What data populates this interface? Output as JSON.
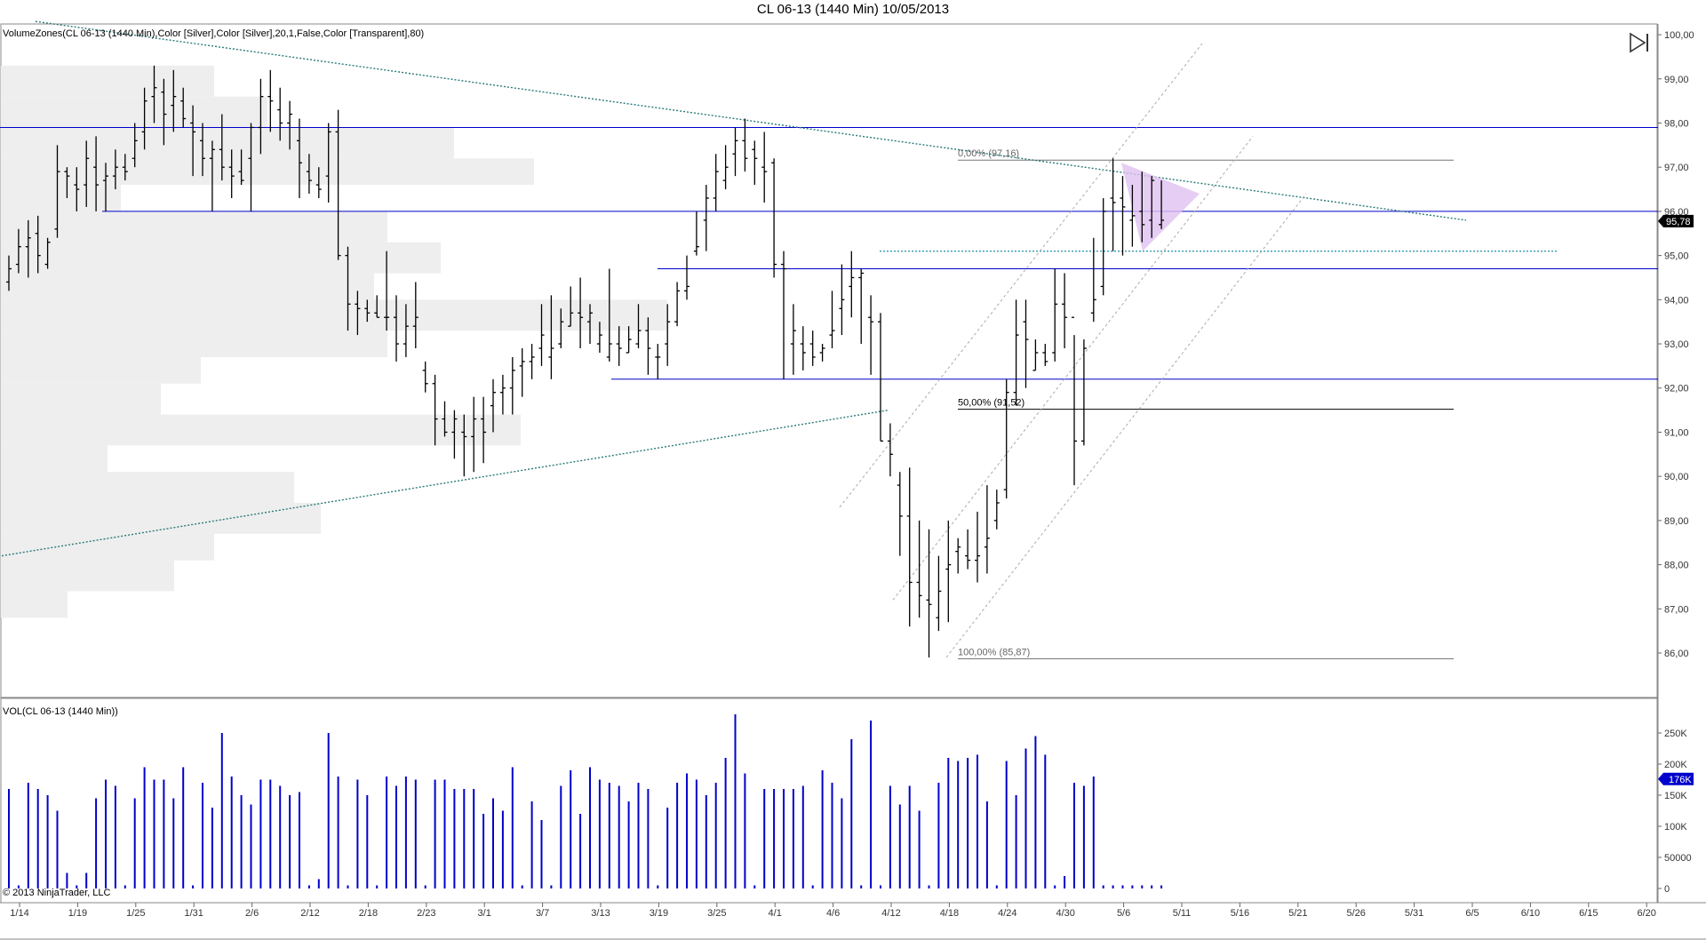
{
  "title": "CL 06-13 (1440 Min)  10/05/2013",
  "price_panel_label": "VolumeZones(CL 06-13 (1440 Min),Color [Silver],Color [Silver],20,1,False,Color [Transparent],80)",
  "volume_panel_label": "VOL(CL 06-13 (1440 Min))",
  "copyright": "© 2013 NinjaTrader, LLC",
  "colors": {
    "bars": "#000000",
    "volume": "#0000cc",
    "level_lines": "#0000cc",
    "trendline": "#2a7a7a",
    "zones": "#eeeeee",
    "triangle": "#e0c0f0",
    "price_marker": "#000000",
    "volume_marker": "#0000cc"
  },
  "icons": {
    "play_end": "play-to-end-icon"
  },
  "chart_data": [
    {
      "type": "ohlc",
      "panel": "price",
      "ylim": [
        85,
        100
      ],
      "y_ticks": [
        "86,00",
        "87,00",
        "88,00",
        "89,00",
        "90,00",
        "91,00",
        "92,00",
        "93,00",
        "94,00",
        "95,00",
        "96,00",
        "97,00",
        "98,00",
        "99,00",
        "100,00"
      ],
      "x_ticks": [
        "1/14",
        "1/19",
        "1/25",
        "1/31",
        "2/6",
        "2/12",
        "2/18",
        "2/23",
        "3/1",
        "3/7",
        "3/13",
        "3/19",
        "3/25",
        "4/1",
        "4/6",
        "4/12",
        "4/18",
        "4/24",
        "4/30",
        "5/6",
        "5/11",
        "5/16",
        "5/21",
        "5/26",
        "5/31",
        "6/5",
        "6/10",
        "6/15",
        "6/20"
      ],
      "current_price": "95,78",
      "bars": [
        [
          94.4,
          95.0,
          94.2,
          94.7
        ],
        [
          94.8,
          95.6,
          94.6,
          95.2
        ],
        [
          95.2,
          95.8,
          94.5,
          95.4
        ],
        [
          95.5,
          95.9,
          94.6,
          95.0
        ],
        [
          94.8,
          95.4,
          94.7,
          95.3
        ],
        [
          95.6,
          97.5,
          95.4,
          96.9
        ],
        [
          96.9,
          97.0,
          96.3,
          96.8
        ],
        [
          96.6,
          97.0,
          96.0,
          96.5
        ],
        [
          96.6,
          97.6,
          96.1,
          97.2
        ],
        [
          97.0,
          97.7,
          96.0,
          96.6
        ],
        [
          96.7,
          97.1,
          96.0,
          96.8
        ],
        [
          96.8,
          97.4,
          96.5,
          97.0
        ],
        [
          97.0,
          97.3,
          96.7,
          96.9
        ],
        [
          97.2,
          98.0,
          97.0,
          97.6
        ],
        [
          97.8,
          98.8,
          97.4,
          98.5
        ],
        [
          98.6,
          99.3,
          98.0,
          98.8
        ],
        [
          98.7,
          99.0,
          97.5,
          98.2
        ],
        [
          98.4,
          99.2,
          97.8,
          98.6
        ],
        [
          98.5,
          98.8,
          97.9,
          98.1
        ],
        [
          98.0,
          98.4,
          96.8,
          97.8
        ],
        [
          97.6,
          98.0,
          96.8,
          97.2
        ],
        [
          97.2,
          97.6,
          96.0,
          97.4
        ],
        [
          97.4,
          98.2,
          96.7,
          97.0
        ],
        [
          97.0,
          97.4,
          96.3,
          96.8
        ],
        [
          96.9,
          97.4,
          96.6,
          96.7
        ],
        [
          97.2,
          98.0,
          96.0,
          97.9
        ],
        [
          97.9,
          99.0,
          97.3,
          98.6
        ],
        [
          98.6,
          99.2,
          97.8,
          98.5
        ],
        [
          98.3,
          98.8,
          97.6,
          98.0
        ],
        [
          98.0,
          98.5,
          97.4,
          98.2
        ],
        [
          97.6,
          98.1,
          96.3,
          97.1
        ],
        [
          96.9,
          97.3,
          96.4,
          96.7
        ],
        [
          96.6,
          97.0,
          96.3,
          96.5
        ],
        [
          96.8,
          98.0,
          96.2,
          97.8
        ],
        [
          97.8,
          98.3,
          94.9,
          95.0
        ],
        [
          95.0,
          95.2,
          93.3,
          93.9
        ],
        [
          93.9,
          94.2,
          93.2,
          93.8
        ],
        [
          93.8,
          94.0,
          93.5,
          93.7
        ],
        [
          93.7,
          94.1,
          93.6,
          93.6
        ],
        [
          93.6,
          95.1,
          93.3,
          93.6
        ],
        [
          93.6,
          94.1,
          92.6,
          93.0
        ],
        [
          93.0,
          93.9,
          92.7,
          93.4
        ],
        [
          93.4,
          94.4,
          92.9,
          93.6
        ],
        [
          92.4,
          92.6,
          91.9,
          92.1
        ],
        [
          92.1,
          92.3,
          90.7,
          91.3
        ],
        [
          91.3,
          91.7,
          90.9,
          91.0
        ],
        [
          91.0,
          91.5,
          90.4,
          91.3
        ],
        [
          91.0,
          91.4,
          90.0,
          90.9
        ],
        [
          90.9,
          91.8,
          90.1,
          91.3
        ],
        [
          91.3,
          91.8,
          90.3,
          91.0
        ],
        [
          91.6,
          92.2,
          91.0,
          91.9
        ],
        [
          91.9,
          92.3,
          91.4,
          92.0
        ],
        [
          92.0,
          92.7,
          91.4,
          92.4
        ],
        [
          92.5,
          92.9,
          91.8,
          92.6
        ],
        [
          92.6,
          93.0,
          92.2,
          92.7
        ],
        [
          92.9,
          93.9,
          92.5,
          93.2
        ],
        [
          92.7,
          94.1,
          92.2,
          92.9
        ],
        [
          93.0,
          93.8,
          92.9,
          93.5
        ],
        [
          93.4,
          94.3,
          93.4,
          93.7
        ],
        [
          93.7,
          94.5,
          92.9,
          93.6
        ],
        [
          93.5,
          93.9,
          93.0,
          93.7
        ],
        [
          93.0,
          93.5,
          92.8,
          93.2
        ],
        [
          92.7,
          94.7,
          92.6,
          93.0
        ],
        [
          93.0,
          93.4,
          92.5,
          92.9
        ],
        [
          92.8,
          93.4,
          92.8,
          93.1
        ],
        [
          93.0,
          93.9,
          92.9,
          93.3
        ],
        [
          93.3,
          93.6,
          92.3,
          92.9
        ],
        [
          92.7,
          93.0,
          92.2,
          92.7
        ],
        [
          93.0,
          93.9,
          92.5,
          93.5
        ],
        [
          93.5,
          94.4,
          93.4,
          94.2
        ],
        [
          94.2,
          95.0,
          94.0,
          94.3
        ],
        [
          95.1,
          96.0,
          95.0,
          95.2
        ],
        [
          95.8,
          96.6,
          95.1,
          96.3
        ],
        [
          96.3,
          97.3,
          96.0,
          96.9
        ],
        [
          96.7,
          97.5,
          96.5,
          97.0
        ],
        [
          97.3,
          97.9,
          96.8,
          97.6
        ],
        [
          97.6,
          98.1,
          96.9,
          97.2
        ],
        [
          97.4,
          97.6,
          96.6,
          97.2
        ],
        [
          97.0,
          97.8,
          96.2,
          96.9
        ],
        [
          97.1,
          97.2,
          94.5,
          94.8
        ],
        [
          94.8,
          95.1,
          92.2,
          94.7
        ],
        [
          93.0,
          93.9,
          92.3,
          93.3
        ],
        [
          93.0,
          93.4,
          92.4,
          92.8
        ],
        [
          93.0,
          93.3,
          92.5,
          92.7
        ],
        [
          92.8,
          93.0,
          92.6,
          92.9
        ],
        [
          93.2,
          94.2,
          92.9,
          93.3
        ],
        [
          93.8,
          94.8,
          93.2,
          94.0
        ],
        [
          94.3,
          95.1,
          93.6,
          94.5
        ],
        [
          94.5,
          94.7,
          93.0,
          94.6
        ],
        [
          93.6,
          94.1,
          92.3,
          93.5
        ],
        [
          93.5,
          93.7,
          90.8,
          90.8
        ],
        [
          90.8,
          91.2,
          90.0,
          90.5
        ],
        [
          89.8,
          90.1,
          88.2,
          89.1
        ],
        [
          89.1,
          90.2,
          86.6,
          87.6
        ],
        [
          87.6,
          89.0,
          86.8,
          87.3
        ],
        [
          87.2,
          88.8,
          85.9,
          87.1
        ],
        [
          86.8,
          88.2,
          86.5,
          87.4
        ],
        [
          87.9,
          89.0,
          86.7,
          88.0
        ],
        [
          88.3,
          88.6,
          87.8,
          88.4
        ],
        [
          88.2,
          88.8,
          87.9,
          88.1
        ],
        [
          88.1,
          89.2,
          87.6,
          88.2
        ],
        [
          88.4,
          89.8,
          87.8,
          88.6
        ],
        [
          89.0,
          89.7,
          88.8,
          89.4
        ],
        [
          89.7,
          92.2,
          89.5,
          91.9
        ],
        [
          91.9,
          94.0,
          91.6,
          93.2
        ],
        [
          93.5,
          94.0,
          92.0,
          93.1
        ],
        [
          92.4,
          93.1,
          92.4,
          92.8
        ],
        [
          92.8,
          93.0,
          92.5,
          92.6
        ],
        [
          92.8,
          94.7,
          92.6,
          93.9
        ],
        [
          93.9,
          94.6,
          92.9,
          93.6
        ],
        [
          93.6,
          93.2,
          89.8,
          90.8
        ],
        [
          90.8,
          93.1,
          90.7,
          92.9
        ],
        [
          93.7,
          95.4,
          93.5,
          94.0
        ],
        [
          94.3,
          96.3,
          94.1,
          96.0
        ],
        [
          96.3,
          97.2,
          95.1,
          96.2
        ],
        [
          96.3,
          96.8,
          95.0,
          96.1
        ],
        [
          95.8,
          96.6,
          95.2,
          95.9
        ],
        [
          96.0,
          96.9,
          95.3,
          95.7
        ],
        [
          95.8,
          96.8,
          95.4,
          96.7
        ],
        [
          95.7,
          96.7,
          95.6,
          95.8
        ]
      ]
    },
    {
      "type": "bar",
      "panel": "volume",
      "ylim": [
        0,
        300000
      ],
      "y_ticks": [
        "0",
        "50000",
        "100K",
        "150K",
        "200K",
        "250K"
      ],
      "current_volume": "176K",
      "values": [
        160,
        5,
        170,
        160,
        150,
        125,
        25,
        5,
        25,
        145,
        175,
        165,
        5,
        145,
        195,
        175,
        175,
        145,
        195,
        5,
        170,
        130,
        250,
        180,
        150,
        135,
        175,
        175,
        165,
        150,
        155,
        5,
        15,
        250,
        180,
        5,
        175,
        150,
        5,
        180,
        165,
        180,
        175,
        5,
        175,
        175,
        160,
        160,
        160,
        120,
        145,
        125,
        195,
        5,
        140,
        110,
        5,
        165,
        190,
        120,
        195,
        175,
        170,
        165,
        140,
        170,
        160,
        5,
        130,
        170,
        185,
        175,
        150,
        170,
        210,
        280,
        185,
        5,
        160,
        160,
        160,
        160,
        165,
        5,
        190,
        170,
        145,
        240,
        5,
        270,
        5,
        165,
        135,
        165,
        125,
        5,
        170,
        210,
        205,
        210,
        215,
        140,
        5,
        205,
        150,
        225,
        245,
        215,
        5,
        20,
        170,
        165,
        180,
        5,
        5,
        5,
        5,
        5,
        5,
        5
      ]
    }
  ],
  "annotations": {
    "fib_0": "0,00% (97,16)",
    "fib_50": "50,00% (91,52)",
    "fib_100": "100,00% (85,87)"
  }
}
